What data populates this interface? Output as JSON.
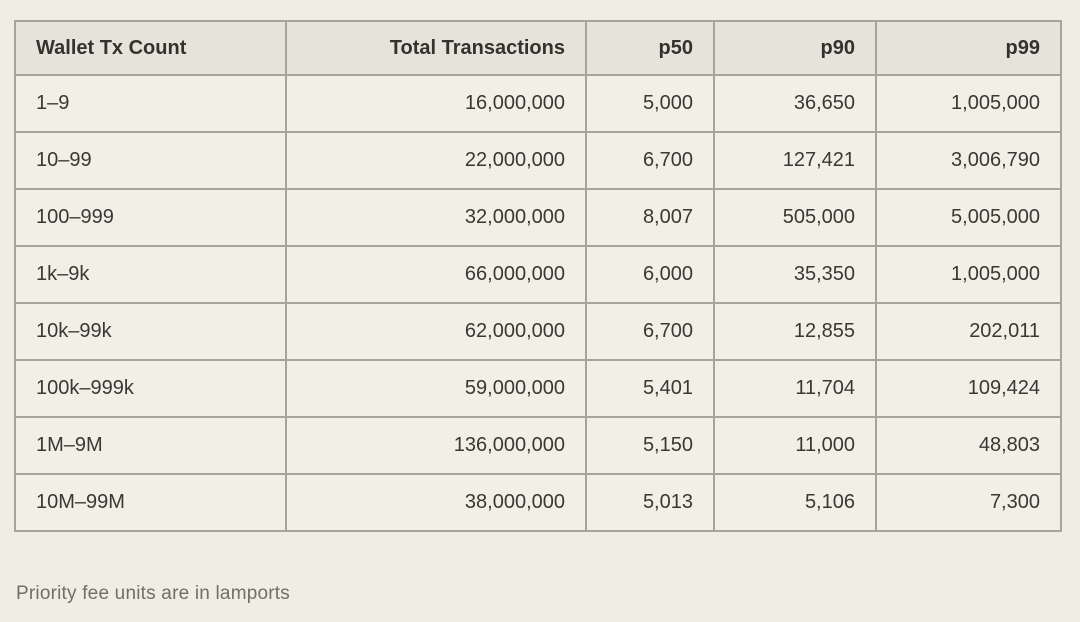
{
  "table": {
    "columns": [
      {
        "label": "Wallet Tx Count",
        "align": "left"
      },
      {
        "label": "Total Transactions",
        "align": "right"
      },
      {
        "label": "p50",
        "align": "right"
      },
      {
        "label": "p90",
        "align": "right"
      },
      {
        "label": "p99",
        "align": "right"
      }
    ],
    "rows": [
      [
        "1–9",
        "16,000,000",
        "5,000",
        "36,650",
        "1,005,000"
      ],
      [
        "10–99",
        "22,000,000",
        "6,700",
        "127,421",
        "3,006,790"
      ],
      [
        "100–999",
        "32,000,000",
        "8,007",
        "505,000",
        "5,005,000"
      ],
      [
        "1k–9k",
        "66,000,000",
        "6,000",
        "35,350",
        "1,005,000"
      ],
      [
        "10k–99k",
        "62,000,000",
        "6,700",
        "12,855",
        "202,011"
      ],
      [
        "100k–999k",
        "59,000,000",
        "5,401",
        "11,704",
        "109,424"
      ],
      [
        "1M–9M",
        "136,000,000",
        "5,150",
        "11,000",
        "48,803"
      ],
      [
        "10M–99M",
        "38,000,000",
        "5,013",
        "5,106",
        "7,300"
      ]
    ]
  },
  "footnote": "Priority fee units are in lamports",
  "colors": {
    "page_background": "#f0ede4",
    "header_background": "#e6e4da",
    "cell_background": "#f2efe7",
    "border": "#a7a59b",
    "text": "#3a3832",
    "footnote_text": "#716f66"
  },
  "chart_data": {
    "type": "table",
    "title": "",
    "columns": [
      "Wallet Tx Count",
      "Total Transactions",
      "p50",
      "p90",
      "p99"
    ],
    "categories": [
      "1–9",
      "10–99",
      "100–999",
      "1k–9k",
      "10k–99k",
      "100k–999k",
      "1M–9M",
      "10M–99M"
    ],
    "series": [
      {
        "name": "Total Transactions",
        "values": [
          16000000,
          22000000,
          32000000,
          66000000,
          62000000,
          59000000,
          136000000,
          38000000
        ]
      },
      {
        "name": "p50",
        "values": [
          5000,
          6700,
          8007,
          6000,
          6700,
          5401,
          5150,
          5013
        ]
      },
      {
        "name": "p90",
        "values": [
          36650,
          127421,
          505000,
          35350,
          12855,
          11704,
          11000,
          5106
        ]
      },
      {
        "name": "p99",
        "values": [
          1005000,
          3006790,
          5005000,
          1005000,
          202011,
          109424,
          48803,
          7300
        ]
      }
    ],
    "annotations": [
      "Priority fee units are in lamports"
    ],
    "units": "lamports"
  }
}
